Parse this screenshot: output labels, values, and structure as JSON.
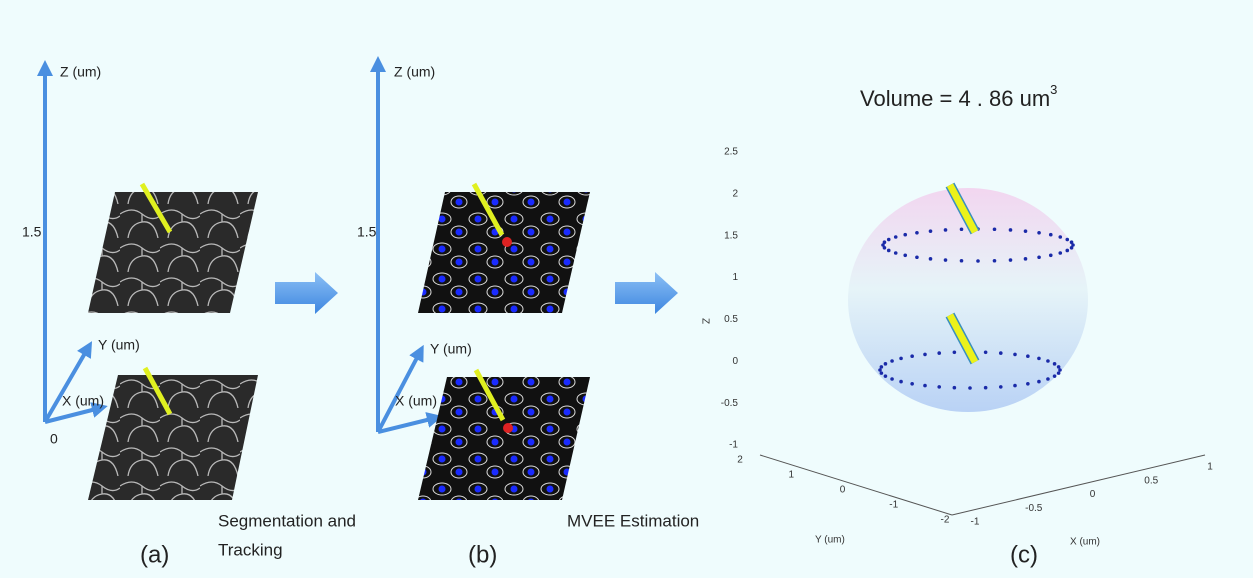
{
  "panels": [
    {
      "label": "(a)",
      "z_axis": "Z (um)",
      "y_axis": "Y (um)",
      "x_axis": "X (um)",
      "z_tick": "1.5",
      "origin": "0"
    },
    {
      "label": "(b)",
      "z_axis": "Z (um)",
      "y_axis": "Y (um)",
      "x_axis": "X (um)",
      "z_tick": "1.5"
    },
    {
      "label": "(c)",
      "title": "Volume = 4 . 86 um",
      "title_sup": "3",
      "z_axis": "Z",
      "z_ticks": [
        "2.5",
        "2",
        "1.5",
        "1",
        "0.5",
        "0",
        "-0.5",
        "-1"
      ],
      "y_axis": "Y (um)",
      "y_ticks": [
        "2",
        "1",
        "0",
        "-1",
        "-2"
      ],
      "x_axis": "X (um)",
      "x_ticks": [
        "-1",
        "-0.5",
        "0",
        "0.5",
        "1"
      ]
    }
  ],
  "steps": [
    {
      "lines": [
        "Segmentation and",
        "Tracking"
      ]
    },
    {
      "lines": [
        "MVEE Estimation"
      ]
    }
  ]
}
